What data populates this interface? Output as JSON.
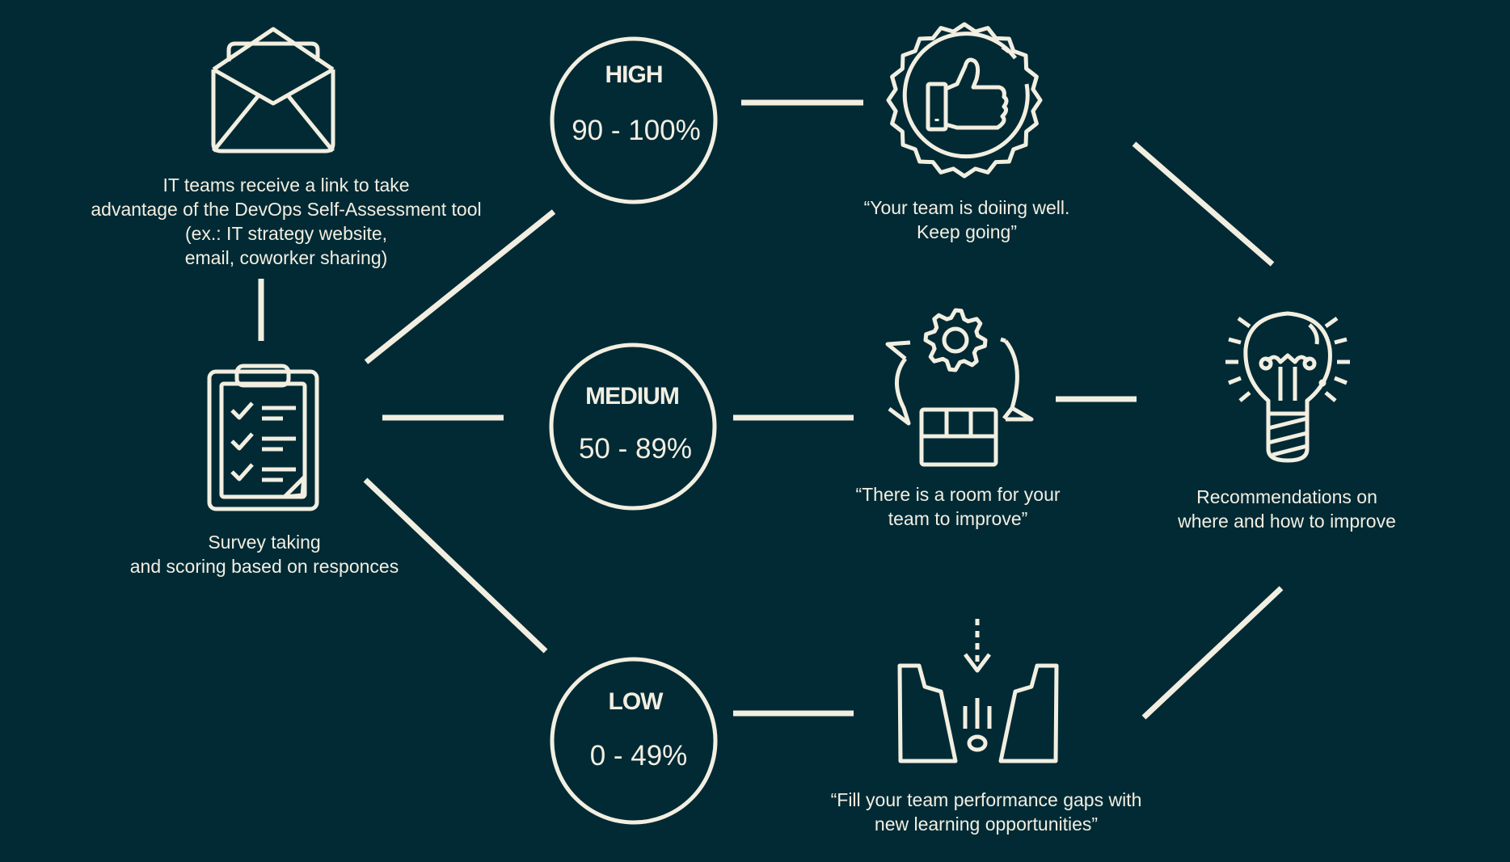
{
  "colors": {
    "background": "#022a35",
    "foreground": "#f2efe1"
  },
  "steps": {
    "invite": {
      "icon": "envelope-icon",
      "lines": [
        "IT teams receive a link to take",
        "advantage of the DevOps Self-Assessment tool",
        "(ex.: IT strategy website,",
        "email, coworker sharing)"
      ]
    },
    "survey": {
      "icon": "clipboard-checklist-icon",
      "lines": [
        "Survey taking",
        "and scoring based on responces"
      ]
    },
    "recommendations": {
      "icon": "lightbulb-icon",
      "lines": [
        "Recommendations on",
        "where and how to improve"
      ]
    }
  },
  "levels": {
    "high": {
      "title": "HIGH",
      "range": "90 - 100%"
    },
    "medium": {
      "title": "MEDIUM",
      "range": "50 - 89%"
    },
    "low": {
      "title": "LOW",
      "range": "0 - 49%"
    }
  },
  "outcomes": {
    "high": {
      "icon": "thumbs-up-badge-icon",
      "lines": [
        "“Your team is doiing well.",
        "Keep going”"
      ]
    },
    "medium": {
      "icon": "gear-cycle-box-icon",
      "lines": [
        "“There is a room for your",
        "team to improve”"
      ]
    },
    "low": {
      "icon": "gap-bridge-icon",
      "lines": [
        "“Fill your team performance gaps with",
        "new learning opportunities”"
      ]
    }
  }
}
